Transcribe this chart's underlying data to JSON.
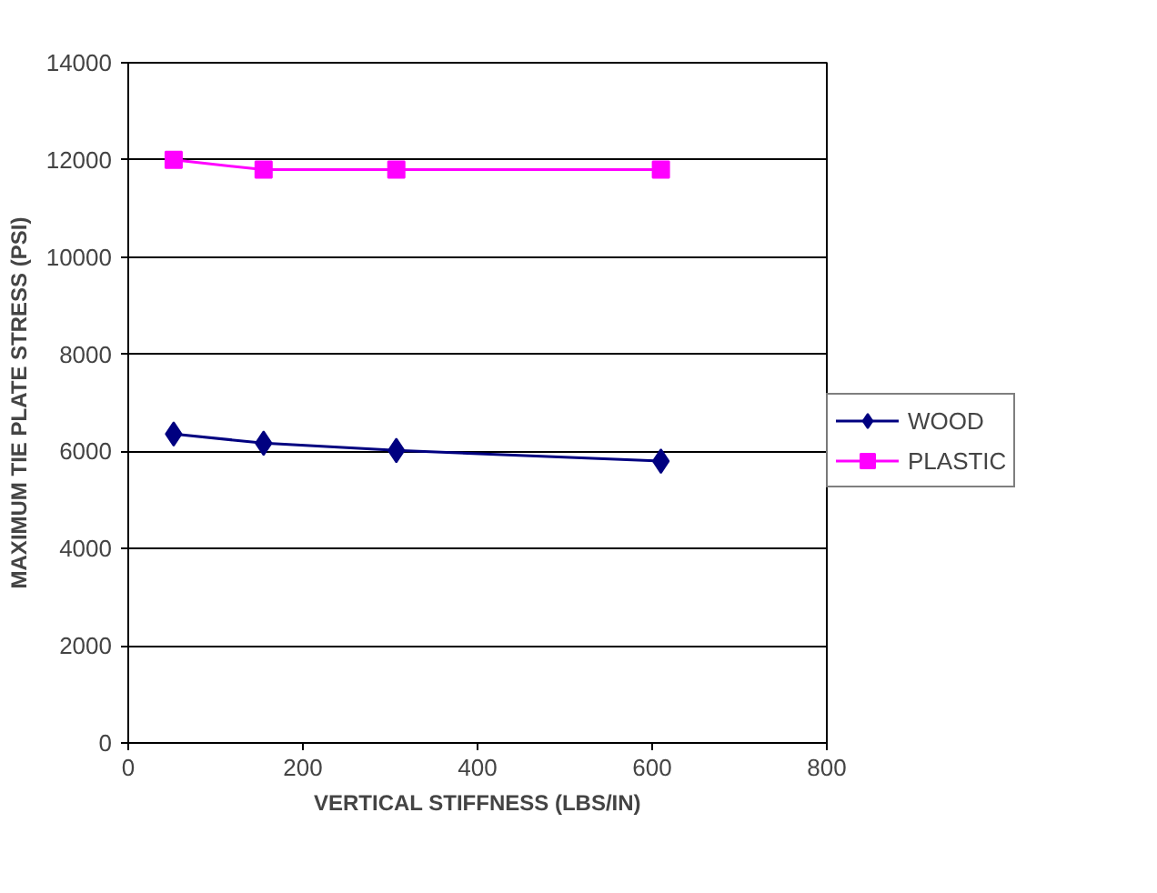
{
  "chart_data": {
    "type": "line",
    "xlabel": "VERTICAL STIFFNESS (LBS/IN)",
    "ylabel": "MAXIMUM TIE PLATE STRESS (PSI)",
    "x": [
      52,
      155,
      307,
      610
    ],
    "series": [
      {
        "name": "WOOD",
        "color": "#000080",
        "values": [
          6360,
          6170,
          6020,
          5800
        ],
        "marker": "diamond"
      },
      {
        "name": "PLASTIC",
        "color": "#ff00ff",
        "values": [
          12000,
          11800,
          11800,
          11800
        ],
        "marker": "square"
      }
    ],
    "xlim": [
      0,
      800
    ],
    "xticks": [
      0,
      200,
      400,
      600,
      800
    ],
    "ylim": [
      0,
      14000
    ],
    "yticks": [
      0,
      2000,
      4000,
      6000,
      8000,
      10000,
      12000,
      14000
    ],
    "grid": "y",
    "legend": "right"
  }
}
